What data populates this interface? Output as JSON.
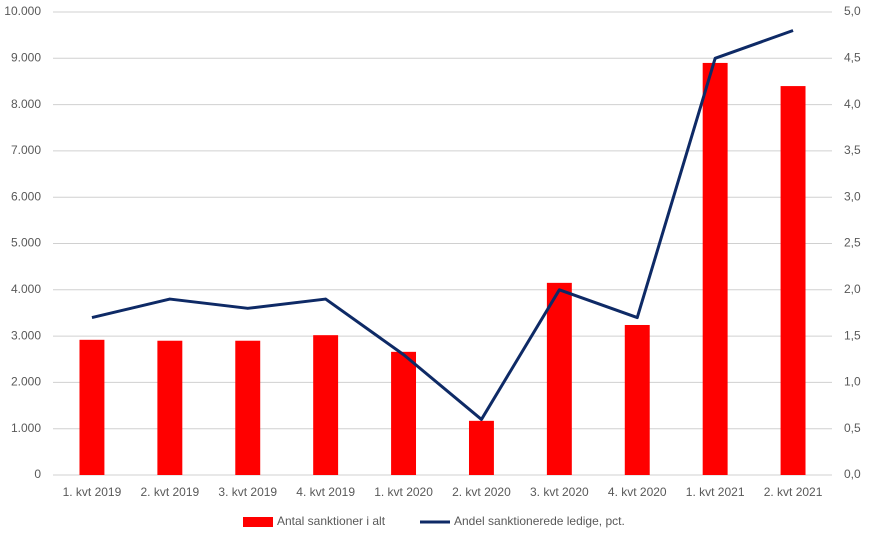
{
  "chart_data": {
    "type": "combo",
    "categories": [
      "1. kvt 2019",
      "2. kvt 2019",
      "3. kvt 2019",
      "4. kvt 2019",
      "1. kvt 2020",
      "2. kvt 2020",
      "3. kvt 2020",
      "4. kvt 2020",
      "1. kvt 2021",
      "2. kvt 2021"
    ],
    "series": [
      {
        "name": "Antal sanktioner i alt",
        "type": "bar",
        "color": "#ff0000",
        "values": [
          2920,
          2900,
          2900,
          3020,
          2660,
          1170,
          4150,
          3240,
          8900,
          8400
        ]
      },
      {
        "name": "Andel sanktionerede ledige, pct.",
        "type": "line",
        "axis": "y2",
        "color": "#0e2a66",
        "values": [
          1.7,
          1.9,
          1.8,
          1.9,
          1.3,
          0.6,
          2.0,
          1.7,
          4.5,
          4.8
        ]
      }
    ],
    "ylim": [
      0,
      10000
    ],
    "yticks": [
      0,
      {
        "value": 1000,
        "label": "1.000"
      },
      {
        "value": 2000,
        "label": "2.000"
      },
      {
        "value": 3000,
        "label": "3.000"
      },
      {
        "value": 4000,
        "label": "4.000"
      },
      {
        "value": 5000,
        "label": "5.000"
      },
      {
        "value": 6000,
        "label": "6.000"
      },
      {
        "value": 7000,
        "label": "7.000"
      },
      {
        "value": 8000,
        "label": "8.000"
      },
      {
        "value": 9000,
        "label": "9.000"
      },
      {
        "value": 10000,
        "label": "10.000"
      }
    ],
    "y2lim": [
      0,
      5
    ],
    "y2ticks": [
      {
        "value": 0,
        "label": "0,0"
      },
      {
        "value": 0.5,
        "label": "0,5"
      },
      {
        "value": 1,
        "label": "1,0"
      },
      {
        "value": 1.5,
        "label": "1,5"
      },
      {
        "value": 2,
        "label": "2,0"
      },
      {
        "value": 2.5,
        "label": "2,5"
      },
      {
        "value": 3,
        "label": "3,0"
      },
      {
        "value": 3.5,
        "label": "3,5"
      },
      {
        "value": 4,
        "label": "4,0"
      },
      {
        "value": 4.5,
        "label": "4,5"
      },
      {
        "value": 5,
        "label": "5,0"
      }
    ],
    "grid": true,
    "legend": "bottom"
  }
}
